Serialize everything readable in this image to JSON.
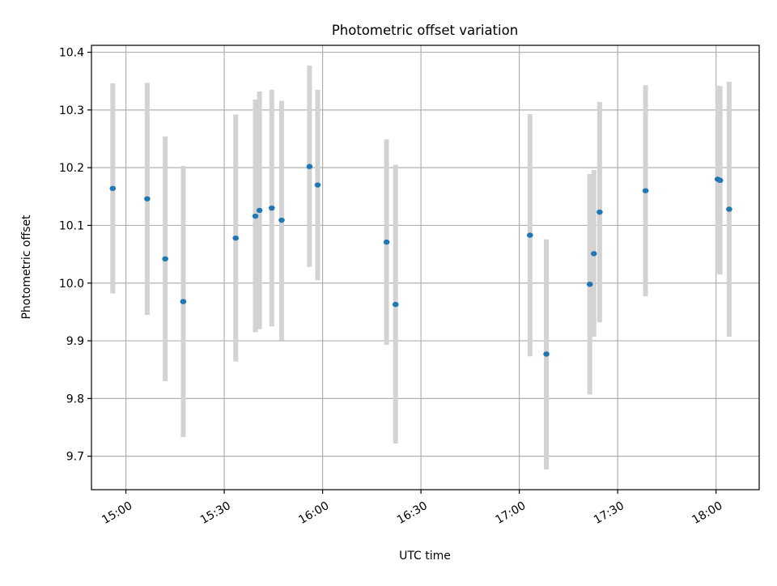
{
  "chart_data": {
    "type": "scatter",
    "title": "Photometric offset variation",
    "xlabel": "UTC time",
    "ylabel": "Photometric offset",
    "xlim": [
      "14:49:30",
      "18:13:10"
    ],
    "ylim": [
      9.642,
      10.412
    ],
    "xticks": [
      "15:00",
      "15:30",
      "16:00",
      "16:30",
      "17:00",
      "17:30",
      "18:00"
    ],
    "yticks": [
      "9.7",
      "9.8",
      "9.9",
      "10.0",
      "10.1",
      "10.2",
      "10.3",
      "10.4"
    ],
    "grid": true,
    "legend": "none",
    "colors": {
      "points": "#1f77b4",
      "errorbars": "#d3d3d3",
      "grid": "#b0b0b0",
      "axes": "#000000"
    },
    "series": [
      {
        "points": [
          {
            "x": "14:56:00",
            "y": 10.164,
            "ylow": 9.982,
            "yhigh": 10.346
          },
          {
            "x": "15:06:30",
            "y": 10.146,
            "ylow": 9.945,
            "yhigh": 10.347
          },
          {
            "x": "15:12:00",
            "y": 10.042,
            "ylow": 9.83,
            "yhigh": 10.254
          },
          {
            "x": "15:17:30",
            "y": 9.968,
            "ylow": 9.733,
            "yhigh": 10.203
          },
          {
            "x": "15:33:30",
            "y": 10.078,
            "ylow": 9.864,
            "yhigh": 10.292
          },
          {
            "x": "15:39:30",
            "y": 10.116,
            "ylow": 9.915,
            "yhigh": 10.318
          },
          {
            "x": "15:40:45",
            "y": 10.126,
            "ylow": 9.92,
            "yhigh": 10.332
          },
          {
            "x": "15:44:30",
            "y": 10.13,
            "ylow": 9.925,
            "yhigh": 10.335
          },
          {
            "x": "15:47:30",
            "y": 10.109,
            "ylow": 9.901,
            "yhigh": 10.316
          },
          {
            "x": "15:56:00",
            "y": 10.202,
            "ylow": 10.028,
            "yhigh": 10.377
          },
          {
            "x": "15:58:30",
            "y": 10.17,
            "ylow": 10.005,
            "yhigh": 10.335
          },
          {
            "x": "16:19:30",
            "y": 10.071,
            "ylow": 9.893,
            "yhigh": 10.249
          },
          {
            "x": "16:22:15",
            "y": 9.963,
            "ylow": 9.722,
            "yhigh": 10.205
          },
          {
            "x": "17:03:15",
            "y": 10.083,
            "ylow": 9.873,
            "yhigh": 10.293
          },
          {
            "x": "17:08:15",
            "y": 9.877,
            "ylow": 9.677,
            "yhigh": 10.076
          },
          {
            "x": "17:21:30",
            "y": 9.998,
            "ylow": 9.807,
            "yhigh": 10.189
          },
          {
            "x": "17:22:45",
            "y": 10.051,
            "ylow": 9.907,
            "yhigh": 10.196
          },
          {
            "x": "17:24:30",
            "y": 10.123,
            "ylow": 9.932,
            "yhigh": 10.314
          },
          {
            "x": "17:38:30",
            "y": 10.16,
            "ylow": 9.977,
            "yhigh": 10.343
          },
          {
            "x": "18:00:30",
            "y": 10.18,
            "ylow": 10.017,
            "yhigh": 10.342
          },
          {
            "x": "18:01:15",
            "y": 10.178,
            "ylow": 10.015,
            "yhigh": 10.341
          },
          {
            "x": "18:04:00",
            "y": 10.128,
            "ylow": 9.907,
            "yhigh": 10.349
          }
        ]
      }
    ]
  }
}
